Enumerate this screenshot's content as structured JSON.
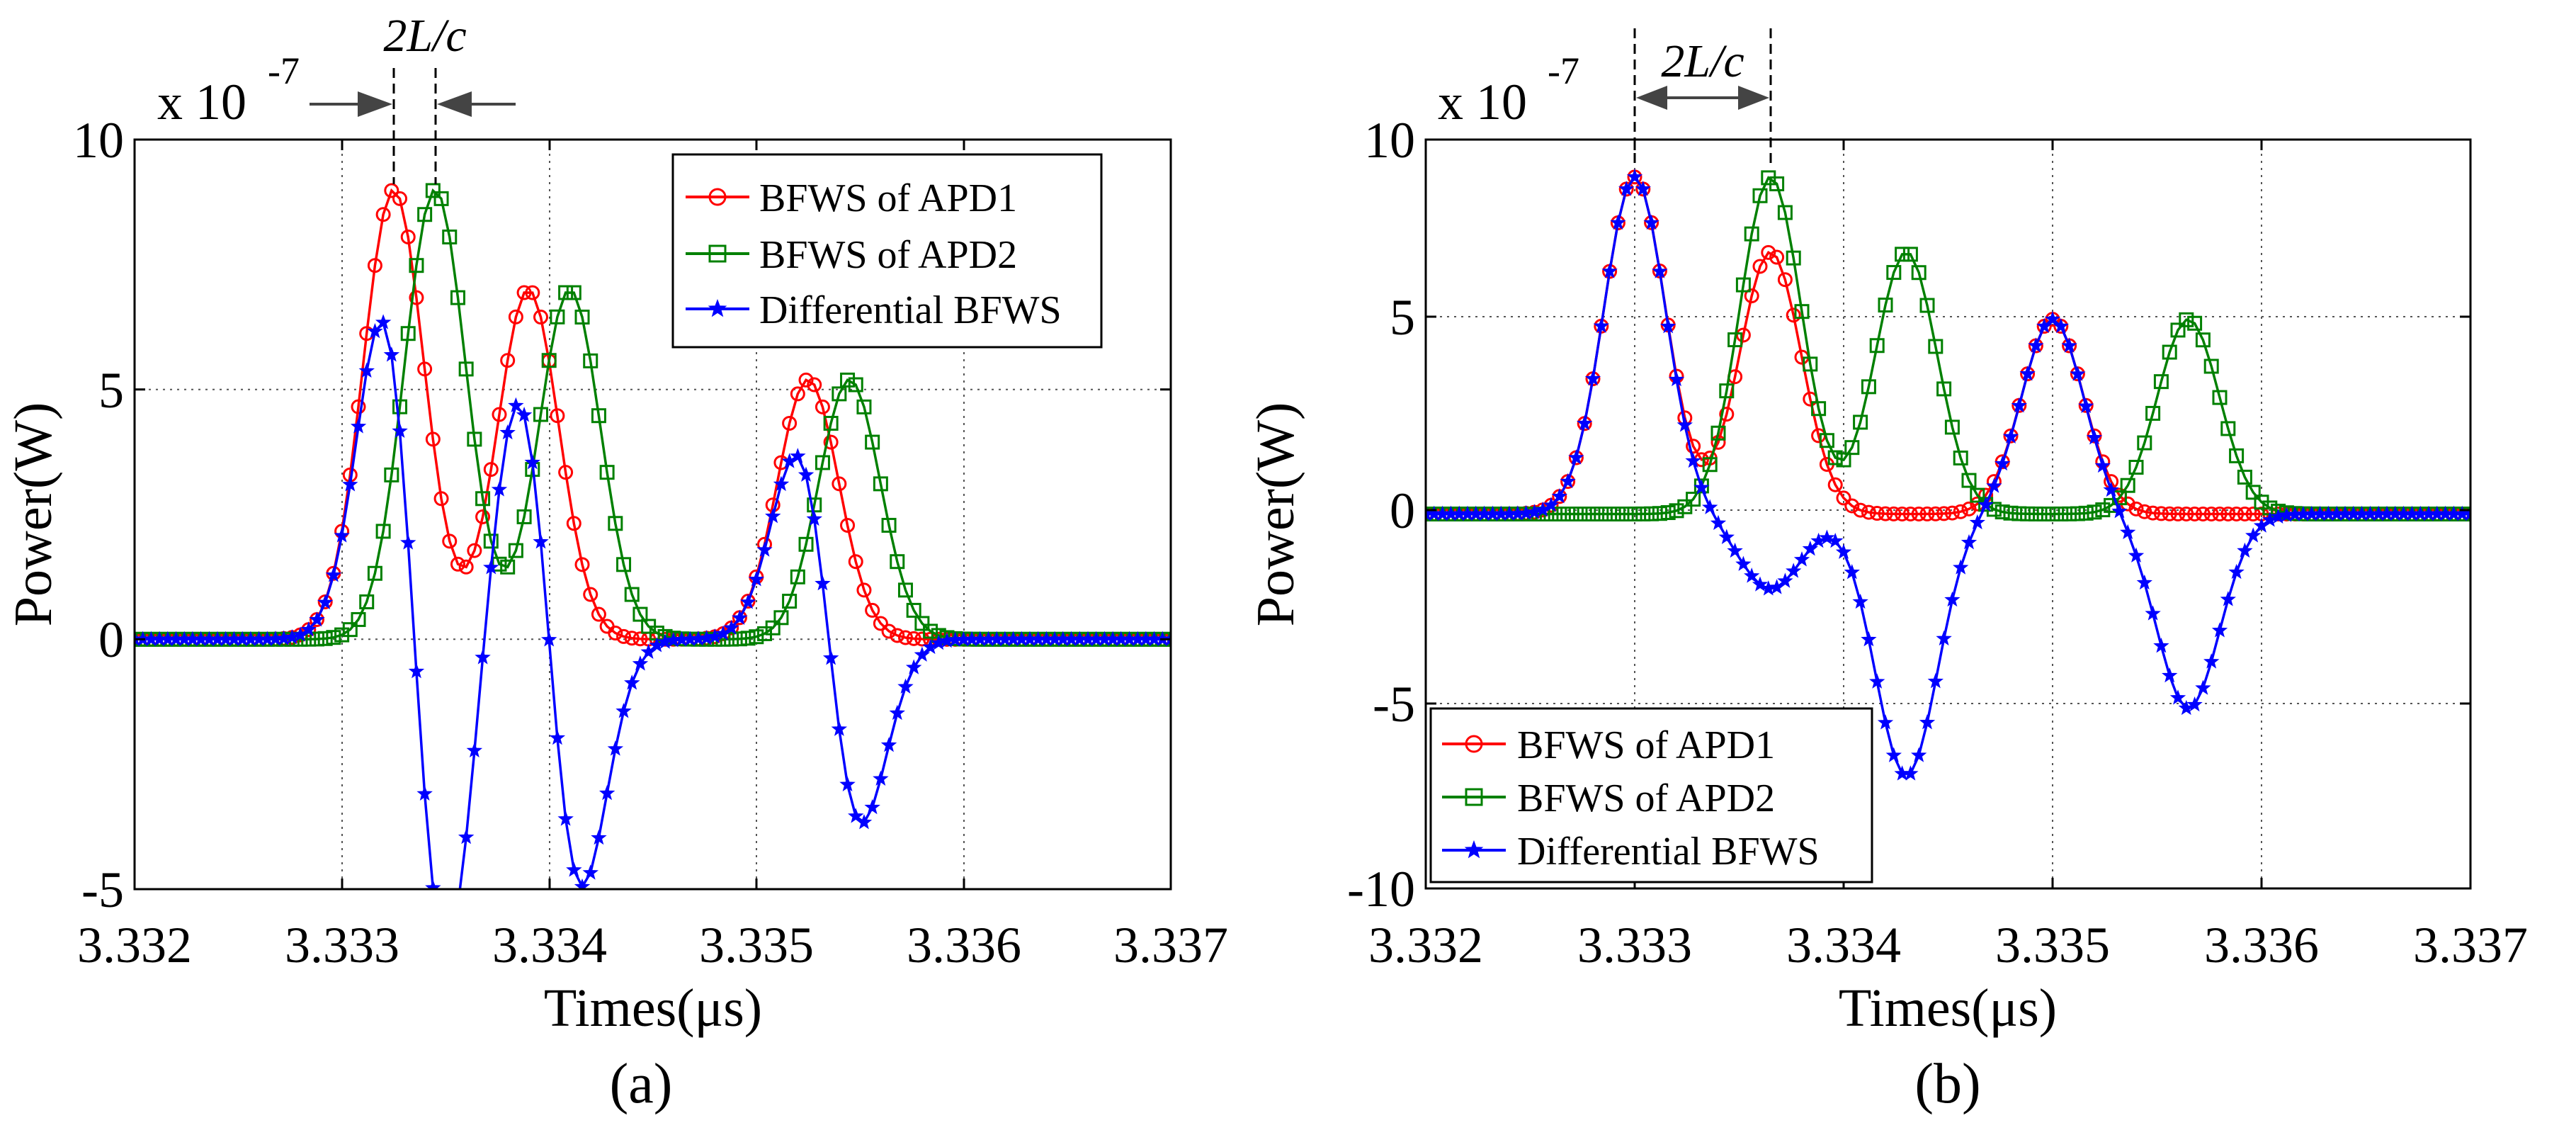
{
  "chart_data": [
    {
      "type": "line",
      "panel_label": "(a)",
      "xlabel": "Times(μs)",
      "ylabel": "Power(W)",
      "exponent_label": {
        "base": "x 10",
        "exp": "-7"
      },
      "x_ticks": [
        "3.332",
        "3.333",
        "3.334",
        "3.335",
        "3.336",
        "3.337"
      ],
      "y_ticks": [
        "10",
        "5",
        "0",
        "-5"
      ],
      "xlim": [
        3.332,
        3.337
      ],
      "ylim": [
        -5,
        10
      ],
      "grid": true,
      "legend_position": "top-right",
      "annotation": {
        "text": "2L/c",
        "span": [
          3.33325,
          3.33345
        ],
        "style": "inward-arrows"
      },
      "series": [
        {
          "name": "BFWS of APD1",
          "color": "#ff0000",
          "marker": "circle",
          "peaks": [
            {
              "x": 3.33325,
              "a": 9.0,
              "s": 0.000148
            },
            {
              "x": 3.3339,
              "a": 7.0,
              "s": 0.000148
            },
            {
              "x": 3.33525,
              "a": 5.2,
              "s": 0.000148
            }
          ]
        },
        {
          "name": "BFWS of APD2",
          "color": "#008000",
          "marker": "square",
          "peaks": [
            {
              "x": 3.33345,
              "a": 9.0,
              "s": 0.000148
            },
            {
              "x": 3.3341,
              "a": 7.0,
              "s": 0.000148
            },
            {
              "x": 3.33545,
              "a": 5.2,
              "s": 0.000148
            }
          ]
        },
        {
          "name": "Differential BFWS",
          "color": "#0000ff",
          "marker": "star",
          "derived": "APD1 - APD2"
        }
      ]
    },
    {
      "type": "line",
      "panel_label": "(b)",
      "xlabel": "Times(μs)",
      "ylabel": "Power(W)",
      "exponent_label": {
        "base": "x 10",
        "exp": "-7"
      },
      "x_ticks": [
        "3.332",
        "3.333",
        "3.334",
        "3.335",
        "3.336",
        "3.337"
      ],
      "y_ticks": [
        "10",
        "5",
        "0",
        "-5",
        "-10"
      ],
      "xlim": [
        3.332,
        3.337
      ],
      "ylim": [
        -10,
        10
      ],
      "grid": true,
      "legend_position": "bottom-left",
      "annotation": {
        "text": "2L/c",
        "span": [
          3.333,
          3.33365
        ],
        "style": "between-arrows"
      },
      "series": [
        {
          "name": "BFWS of APD1",
          "color": "#ff0000",
          "marker": "circle",
          "peaks": [
            {
              "x": 3.333,
              "a": 9.0,
              "s": 0.000148
            },
            {
              "x": 3.33365,
              "a": 7.0,
              "s": 0.000148
            },
            {
              "x": 3.335,
              "a": 5.2,
              "s": 0.000148
            }
          ]
        },
        {
          "name": "BFWS of APD2",
          "color": "#008000",
          "marker": "square",
          "peaks": [
            {
              "x": 3.33365,
              "a": 9.0,
              "s": 0.000148
            },
            {
              "x": 3.3343,
              "a": 7.0,
              "s": 0.000148
            },
            {
              "x": 3.33565,
              "a": 5.2,
              "s": 0.000148
            }
          ]
        },
        {
          "name": "Differential BFWS",
          "color": "#0000ff",
          "marker": "star",
          "derived": "APD1 - APD2"
        }
      ]
    }
  ]
}
